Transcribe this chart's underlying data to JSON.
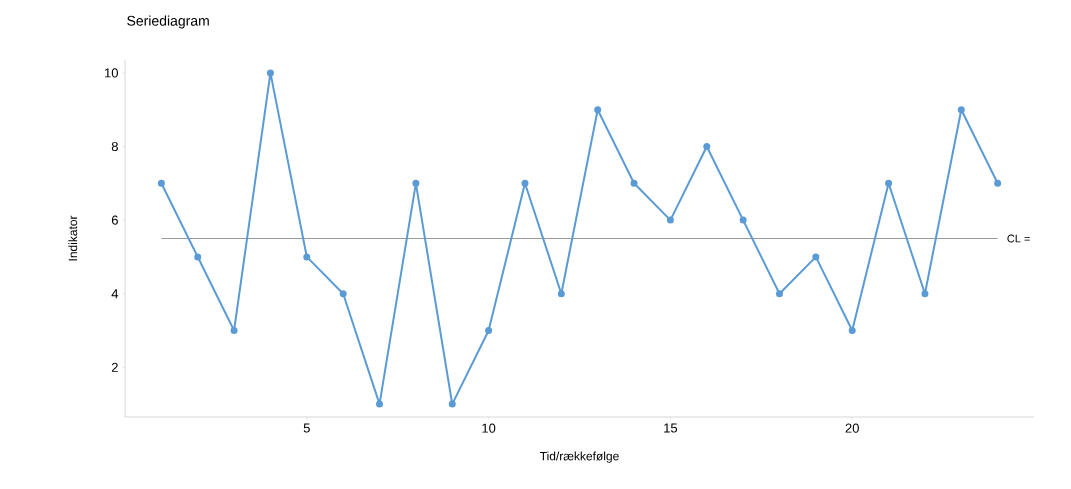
{
  "chart_data": {
    "type": "line",
    "title": "Seriediagram",
    "xlabel": "Tid/rækkefølge",
    "ylabel": "Indikator",
    "x": [
      1,
      2,
      3,
      4,
      5,
      6,
      7,
      8,
      9,
      10,
      11,
      12,
      13,
      14,
      15,
      16,
      17,
      18,
      19,
      20,
      21,
      22,
      23,
      24
    ],
    "series": [
      {
        "color": "#5b9bd5",
        "values": [
          7,
          5,
          3,
          10,
          5,
          4,
          1,
          7,
          1,
          3,
          7,
          4,
          9,
          7,
          6,
          8,
          6,
          4,
          5,
          3,
          7,
          4,
          9,
          7
        ]
      }
    ],
    "xlim": [
      0,
      25
    ],
    "ylim": [
      0.65,
      10.35
    ],
    "xticks": [
      5,
      10,
      15,
      20
    ],
    "yticks": [
      2,
      4,
      6,
      8,
      10
    ],
    "ref_lines": [
      {
        "axis": "y",
        "value": 5.5,
        "label": "CL =",
        "color": "#808080"
      }
    ],
    "grid": false,
    "marker": "circle",
    "line_style": "solid"
  }
}
